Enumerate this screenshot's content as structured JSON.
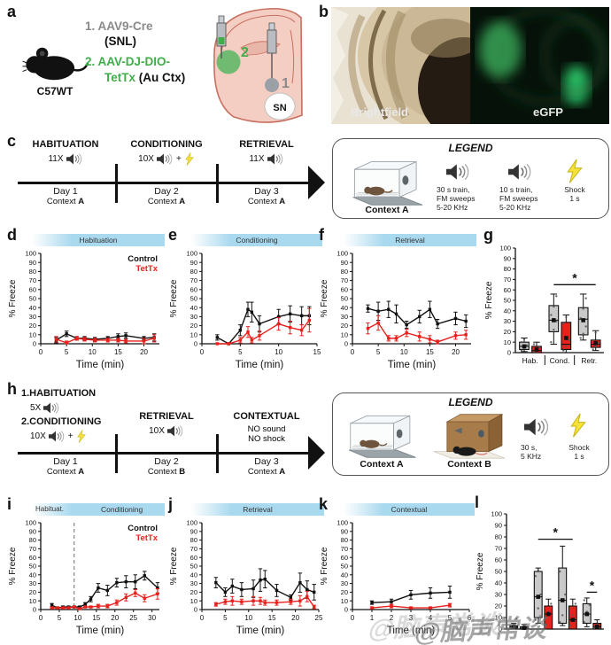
{
  "colors": {
    "control": "#111111",
    "tettx": "#e8211d",
    "header_blue": "#a9d9ef",
    "green": "#3fae49",
    "gray": "#8a8a8a"
  },
  "panel_a": {
    "label": "a",
    "strain": "C57WT",
    "item1_num": "1.",
    "item1_name": "AAV9-Cre",
    "item1_site": "(SNL)",
    "item2_num": "2.",
    "item2_name_line1": "AAV-DJ-DIO-",
    "item2_name_line2": "TetTx",
    "item2_site": "(Au Ctx)",
    "injection1": "1",
    "injection2": "2",
    "region": "SN"
  },
  "panel_b": {
    "label": "b",
    "left_caption": "Brightfield",
    "right_caption": "eGFP"
  },
  "panel_c": {
    "label": "c",
    "plus": "+",
    "phases": [
      {
        "title": "HABITUATION",
        "reps": "11X",
        "day": "Day 1",
        "context_word": "Context",
        "context_letter": "A"
      },
      {
        "title": "CONDITIONING",
        "reps": "10X",
        "day": "Day 2",
        "context_word": "Context",
        "context_letter": "A"
      },
      {
        "title": "RETRIEVAL",
        "reps": "11X",
        "day": "Day 3",
        "context_word": "Context",
        "context_letter": "A"
      }
    ]
  },
  "legend1": {
    "title": "LEGEND",
    "context_a": "Context A",
    "speaker_long": [
      "30 s train,",
      "FM sweeps",
      "5-20 KHz"
    ],
    "speaker_short": [
      "10 s train,",
      "FM sweeps",
      "5-20 KHz"
    ],
    "shock": [
      "Shock",
      "1 s"
    ]
  },
  "panel_h": {
    "label": "h",
    "plus": "+",
    "item1": "1.HABITUATION",
    "item1_reps": "5X",
    "item2": "2.CONDITIONING",
    "item2_reps": "10X",
    "left_day": "Day 1",
    "left_context_word": "Context",
    "left_context_letter": "A",
    "mid_title": "RETRIEVAL",
    "mid_reps": "10X",
    "mid_day": "Day 2",
    "mid_context_word": "Context",
    "mid_context_letter": "B",
    "right_title": "CONTEXTUAL",
    "right_line1": "NO sound",
    "right_line2": "NO shock",
    "right_day": "Day 3",
    "right_context_word": "Context",
    "right_context_letter": "A"
  },
  "legend2": {
    "title": "LEGEND",
    "context_a": "Context A",
    "context_b": "Context B",
    "speaker": [
      "30 s,",
      "5 KHz"
    ],
    "shock": [
      "Shock",
      "1 s"
    ]
  },
  "watermark": {
    "text": "@脑声常谈"
  },
  "chart_data": [
    {
      "panel": "d",
      "type": "line",
      "title": "Habituation",
      "ylabel": "% Freeze",
      "xlabel": "Time (min)",
      "ylim": [
        0,
        100
      ],
      "ytick_step": 10,
      "xlim": [
        0,
        23
      ],
      "xticks": [
        0,
        5,
        10,
        15,
        20
      ],
      "legend": true,
      "grid": false,
      "legend_position": "top-right",
      "x": [
        3,
        5,
        7,
        8.5,
        10.5,
        13,
        15,
        16.5,
        20,
        22
      ],
      "series": [
        {
          "name": "Control",
          "color": "#111111",
          "values": [
            4,
            11,
            6,
            6,
            5,
            6,
            8,
            9,
            6,
            7
          ],
          "err": [
            3,
            3,
            2,
            2,
            2,
            2,
            3,
            3,
            2,
            4
          ]
        },
        {
          "name": "TetTx",
          "color": "#e8211d",
          "values": [
            5,
            1,
            6,
            5,
            4,
            4,
            4,
            3,
            3,
            6
          ],
          "err": [
            3,
            2,
            2,
            2,
            2,
            2,
            2,
            2,
            3,
            4
          ]
        }
      ]
    },
    {
      "panel": "e",
      "type": "line",
      "title": "Conditioning",
      "ylabel": "% Freeze",
      "xlabel": "Time (min)",
      "ylim": [
        0,
        100
      ],
      "ytick_step": 10,
      "xlim": [
        0,
        15
      ],
      "xticks": [
        0,
        5,
        10,
        15
      ],
      "legend": false,
      "grid": false,
      "x": [
        2,
        3.5,
        5,
        6,
        6.5,
        7.5,
        10,
        11.5,
        13,
        14
      ],
      "series": [
        {
          "name": "Control",
          "color": "#111111",
          "values": [
            7,
            0,
            15,
            38,
            35,
            22,
            30,
            33,
            31,
            31
          ],
          "err": [
            3,
            1,
            6,
            8,
            11,
            9,
            8,
            9,
            10,
            10
          ]
        },
        {
          "name": "TetTx",
          "color": "#e8211d",
          "values": [
            0,
            0,
            4,
            13,
            4,
            9,
            22,
            18,
            15,
            26
          ],
          "err": [
            1,
            1,
            3,
            6,
            3,
            5,
            7,
            7,
            6,
            13
          ]
        }
      ]
    },
    {
      "panel": "f",
      "type": "line",
      "title": "Retrieval",
      "ylabel": "% Freeze",
      "xlabel": "Time (min)",
      "ylim": [
        0,
        100
      ],
      "ytick_step": 10,
      "xlim": [
        0,
        23
      ],
      "xticks": [
        0,
        5,
        10,
        15,
        20
      ],
      "legend": false,
      "grid": false,
      "x": [
        3,
        5,
        7,
        8.5,
        10.5,
        13,
        15,
        16.5,
        20,
        22
      ],
      "series": [
        {
          "name": "Control",
          "color": "#111111",
          "values": [
            39,
            36,
            38,
            33,
            21,
            30,
            38,
            22,
            28,
            25
          ],
          "err": [
            4,
            10,
            9,
            10,
            4,
            7,
            9,
            5,
            7,
            7
          ]
        },
        {
          "name": "TetTx",
          "color": "#e8211d",
          "values": [
            17,
            23,
            6,
            6,
            12,
            8,
            5,
            2,
            9,
            10
          ],
          "err": [
            6,
            8,
            3,
            3,
            4,
            5,
            4,
            2,
            4,
            5
          ]
        }
      ]
    },
    {
      "panel": "g",
      "type": "box",
      "ylabel": "% Freeze",
      "ylim": [
        0,
        100
      ],
      "ytick_step": 10,
      "categories": [
        "Hab.",
        "Cond.",
        "Retr."
      ],
      "show_categories": true,
      "groups": [
        {
          "control": {
            "whislo": 1,
            "q1": 3,
            "med": 6,
            "q3": 10,
            "whishi": 14,
            "mean": 6,
            "points": [
              2,
              4,
              7,
              10,
              13
            ]
          },
          "tettx": {
            "whislo": 0,
            "q1": 0,
            "med": 2,
            "q3": 6,
            "whishi": 10,
            "mean": 3,
            "points": [
              1,
              3,
              5,
              8
            ]
          }
        },
        {
          "control": {
            "whislo": 8,
            "q1": 20,
            "med": 31,
            "q3": 45,
            "whishi": 56,
            "mean": 31,
            "points": [
              10,
              22,
              30,
              36,
              44,
              54
            ]
          },
          "tettx": {
            "whislo": 0,
            "q1": 3,
            "med": 8,
            "q3": 29,
            "whishi": 36,
            "mean": 14,
            "points": [
              2,
              6,
              12,
              28,
              34
            ]
          }
        },
        {
          "control": {
            "whislo": 12,
            "q1": 17,
            "med": 32,
            "q3": 43,
            "whishi": 56,
            "mean": 31,
            "points": [
              14,
              18,
              25,
              33,
              42,
              52
            ]
          },
          "tettx": {
            "whislo": 2,
            "q1": 5,
            "med": 8,
            "q3": 12,
            "whishi": 21,
            "mean": 9,
            "points": [
              3,
              6,
              9,
              12,
              19
            ]
          }
        }
      ],
      "sig": [
        {
          "x1g": 1,
          "x1s": 0,
          "x2g": 2,
          "x2s": 1,
          "y": 65,
          "label": "*"
        }
      ]
    },
    {
      "panel": "i",
      "type": "line",
      "headers": [
        "Habituat.",
        "Conditioning"
      ],
      "ylabel": "% Freeze",
      "xlabel": "Time (min)",
      "ylim": [
        0,
        100
      ],
      "ytick_step": 10,
      "xlim": [
        0,
        32
      ],
      "xticks": [
        0,
        5,
        10,
        15,
        20,
        25,
        30
      ],
      "legend": true,
      "vline": 9,
      "grid": false,
      "x": [
        3,
        4.5,
        6,
        7.5,
        9,
        10.5,
        12,
        13.5,
        15.5,
        18,
        20.5,
        23,
        25.5,
        28,
        31.5
      ],
      "series": [
        {
          "name": "Control",
          "color": "#111111",
          "values": [
            5,
            2,
            3,
            3,
            3,
            3,
            6,
            12,
            25,
            22,
            31,
            32,
            32,
            39,
            25
          ],
          "err": [
            2,
            1,
            1,
            1,
            1,
            1,
            2,
            3,
            5,
            6,
            5,
            7,
            8,
            5,
            6
          ]
        },
        {
          "name": "TetTx",
          "color": "#e8211d",
          "values": [
            2,
            2,
            2,
            2,
            3,
            1,
            3,
            3,
            4,
            4,
            8,
            14,
            19,
            13,
            18
          ],
          "err": [
            1,
            1,
            1,
            1,
            1,
            1,
            1,
            1,
            2,
            2,
            3,
            4,
            4,
            4,
            6
          ]
        }
      ]
    },
    {
      "panel": "j",
      "type": "line",
      "title": "Retrieval",
      "ylabel": "% Freeze",
      "xlabel": "Time (min)",
      "ylim": [
        0,
        100
      ],
      "ytick_step": 10,
      "xlim": [
        0,
        25
      ],
      "xticks": [
        0,
        5,
        10,
        15,
        20,
        25
      ],
      "legend": false,
      "grid": false,
      "x": [
        3,
        5,
        6.5,
        8.5,
        11,
        12.5,
        13.5,
        16,
        19,
        21,
        22.5,
        24
      ],
      "series": [
        {
          "name": "Control",
          "color": "#111111",
          "values": [
            31,
            20,
            27,
            23,
            24,
            34,
            35,
            22,
            14,
            31,
            23,
            20
          ],
          "err": [
            6,
            5,
            8,
            8,
            10,
            13,
            10,
            7,
            3,
            11,
            10,
            9
          ]
        },
        {
          "name": "TetTx",
          "color": "#e8211d",
          "values": [
            6,
            9,
            10,
            9,
            10,
            10,
            8,
            8,
            9,
            10,
            15,
            3
          ],
          "err": [
            2,
            3,
            5,
            3,
            5,
            4,
            3,
            3,
            3,
            6,
            6,
            2
          ]
        }
      ]
    },
    {
      "panel": "k",
      "type": "line",
      "title": "Contextual",
      "ylabel": "% Freeze",
      "xlabel": "Time (min)",
      "ylim": [
        0,
        100
      ],
      "ytick_step": 10,
      "xlim": [
        0,
        6
      ],
      "xticks": [
        0,
        1,
        2,
        3,
        4,
        5,
        6
      ],
      "legend": false,
      "grid": false,
      "x": [
        1,
        2,
        3,
        4,
        5
      ],
      "series": [
        {
          "name": "Control",
          "color": "#111111",
          "values": [
            8,
            9,
            17,
            19,
            20
          ],
          "err": [
            2,
            3,
            5,
            6,
            7
          ]
        },
        {
          "name": "TetTx",
          "color": "#e8211d",
          "values": [
            2,
            4,
            2,
            2,
            5
          ],
          "err": [
            1,
            2,
            1,
            1,
            2
          ]
        }
      ]
    },
    {
      "panel": "l",
      "type": "box",
      "ylabel": "% Freeze",
      "ylim": [
        0,
        100
      ],
      "ytick_step": 10,
      "categories": [
        "",
        "",
        "",
        ""
      ],
      "show_categories": false,
      "groups": [
        {
          "control": {
            "whislo": 0,
            "q1": 1,
            "med": 2,
            "q3": 3,
            "whishi": 5,
            "mean": 2,
            "points": [
              1,
              3,
              9
            ]
          },
          "tettx": {
            "whislo": 0,
            "q1": 0,
            "med": 1,
            "q3": 2,
            "whishi": 4,
            "mean": 1,
            "points": [
              1,
              2
            ]
          }
        },
        {
          "control": {
            "whislo": 5,
            "q1": 10,
            "med": 28,
            "q3": 50,
            "whishi": 53,
            "mean": 28,
            "points": [
              8,
              18,
              30,
              46,
              51
            ]
          },
          "tettx": {
            "whislo": 0,
            "q1": 0,
            "med": 13,
            "q3": 20,
            "whishi": 26,
            "mean": 13,
            "points": [
              4,
              15,
              22
            ]
          }
        },
        {
          "control": {
            "whislo": 3,
            "q1": 5,
            "med": 25,
            "q3": 53,
            "whishi": 72,
            "mean": 25,
            "points": [
              6,
              12,
              30,
              50
            ]
          },
          "tettx": {
            "whislo": 0,
            "q1": 0,
            "med": 8,
            "q3": 20,
            "whishi": 26,
            "mean": 8,
            "points": [
              3,
              12,
              22
            ]
          }
        },
        {
          "control": {
            "whislo": 2,
            "q1": 5,
            "med": 13,
            "q3": 22,
            "whishi": 27,
            "mean": 13,
            "points": [
              6,
              15,
              21,
              25
            ]
          },
          "tettx": {
            "whislo": 0,
            "q1": 0,
            "med": 2,
            "q3": 5,
            "whishi": 8,
            "mean": 2,
            "points": [
              1,
              4
            ]
          }
        }
      ],
      "sig": [
        {
          "x1g": 1,
          "x1s": 0,
          "x2g": 2,
          "x2s": 1,
          "y": 78,
          "label": "*"
        },
        {
          "x1g": 3,
          "x1s": 0,
          "x2g": 3,
          "x2s": 1,
          "y": 32,
          "label": "*"
        }
      ]
    }
  ]
}
